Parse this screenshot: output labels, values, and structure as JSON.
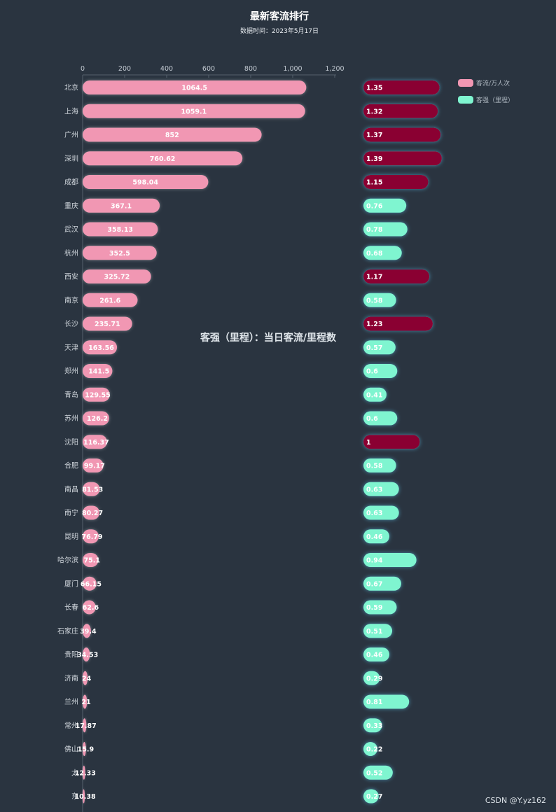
{
  "chart_data": {
    "type": "bar",
    "title": "最新客流排行",
    "subtitle": "数据时间：2023年5月17日",
    "annotation": "客强（里程）：当日客流/里程数",
    "xlim": [
      0,
      1200
    ],
    "xticks": [
      0,
      200,
      400,
      600,
      800,
      1000,
      1200
    ],
    "xtick_labels": [
      "0",
      "200",
      "400",
      "600",
      "800",
      "1,000",
      "1,200"
    ],
    "legend_position": "top-right",
    "categories": [
      "北京",
      "上海",
      "广州",
      "深圳",
      "成都",
      "重庆",
      "武汉",
      "杭州",
      "西安",
      "南京",
      "长沙",
      "天津",
      "郑州",
      "青岛",
      "苏州",
      "沈阳",
      "合肥",
      "南昌",
      "南宁",
      "昆明",
      "哈尔滨",
      "厦门",
      "长春",
      "石家庄",
      "贵阳",
      "济南",
      "兰州",
      "常州",
      "佛山",
      "太原",
      "东莞"
    ],
    "category_labels": [
      "北京",
      "上海",
      "广州",
      "深圳",
      "成都",
      "重庆",
      "武汉",
      "杭州",
      "西安",
      "南京",
      "长沙",
      "天津",
      "郑州",
      "青岛",
      "苏州",
      "沈阳",
      "合肥",
      "南昌",
      "南宁",
      "昆明",
      "哈尔滨",
      "厦门",
      "长春",
      "石家庄",
      "贵阳",
      "济南",
      "兰州",
      "常州",
      "佛山",
      "太",
      "东"
    ],
    "series": [
      {
        "name": "客流/万人次",
        "color": "#f197b3",
        "values": [
          1064.5,
          1059.1,
          852,
          760.62,
          598.04,
          367.1,
          358.13,
          352.5,
          325.72,
          261.6,
          235.71,
          163.56,
          141.5,
          129.55,
          126.2,
          116.37,
          99.17,
          81.53,
          80.27,
          76.79,
          75.1,
          66.15,
          62.6,
          39.4,
          34.53,
          24,
          21,
          17.87,
          15.9,
          12.33,
          10.38
        ],
        "labels": [
          "1064.5",
          "1059.1",
          "852",
          "760.62",
          "598.04",
          "367.1",
          "358.13",
          "352.5",
          "325.72",
          "261.6",
          "235.71",
          "163.56",
          "141.5",
          "129.55",
          "126.2",
          "116.37",
          "99.17",
          "81.53",
          "80.27",
          "76.79",
          "75.1",
          "66.15",
          "62.6",
          "39.4",
          "34.53",
          "24",
          "21",
          "17.87",
          "15.9",
          "12.33",
          "10.38"
        ]
      },
      {
        "name": "客强（里程）",
        "color": "#7ff5d0",
        "high_color": "#8a0131",
        "high_threshold": 1,
        "values": [
          1.35,
          1.32,
          1.37,
          1.39,
          1.15,
          0.76,
          0.78,
          0.68,
          1.17,
          0.58,
          1.23,
          0.57,
          0.6,
          0.41,
          0.6,
          1,
          0.58,
          0.63,
          0.63,
          0.46,
          0.94,
          0.67,
          0.59,
          0.51,
          0.46,
          0.29,
          0.81,
          0.33,
          0.22,
          0.52,
          0.27
        ],
        "labels": [
          "1.35",
          "1.32",
          "1.37",
          "1.39",
          "1.15",
          "0.76",
          "0.78",
          "0.68",
          "1.17",
          "0.58",
          "1.23",
          "0.57",
          "0.6",
          "0.41",
          "0.6",
          "1",
          "0.58",
          "0.63",
          "0.63",
          "0.46",
          "0.94",
          "0.67",
          "0.59",
          "0.51",
          "0.46",
          "0.29",
          "0.81",
          "0.33",
          "0.22",
          "0.52",
          "0.27"
        ]
      }
    ]
  },
  "watermark": "CSDN @Y.yz162"
}
